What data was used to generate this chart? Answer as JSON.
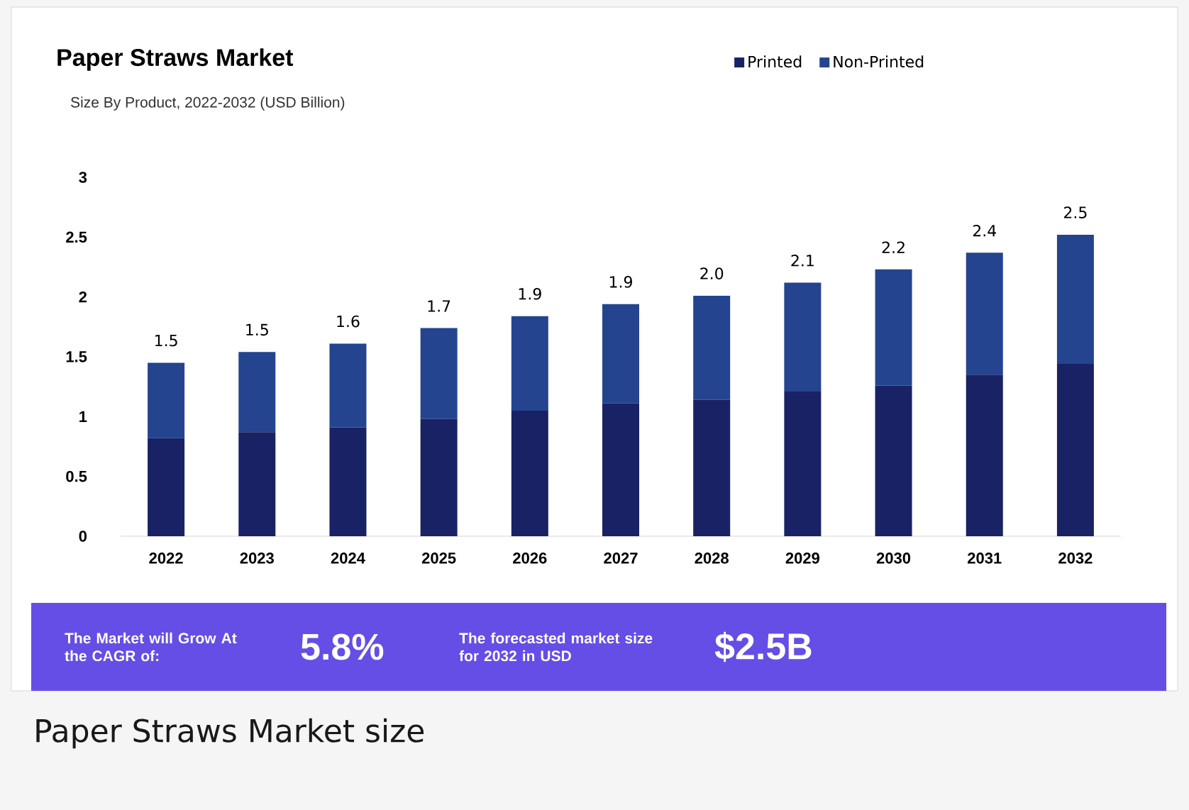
{
  "chart_data": {
    "type": "bar",
    "stacked": true,
    "title": "Paper Straws Market",
    "subtitle": "Size By Product, 2022-2032 (USD Billion)",
    "categories": [
      "2022",
      "2023",
      "2024",
      "2025",
      "2026",
      "2027",
      "2028",
      "2029",
      "2030",
      "2031",
      "2032"
    ],
    "series": [
      {
        "name": "Printed",
        "color": "#182264",
        "values": [
          0.82,
          0.87,
          0.91,
          0.98,
          1.05,
          1.11,
          1.14,
          1.21,
          1.26,
          1.35,
          1.44
        ]
      },
      {
        "name": "Non-Printed",
        "color": "#24448f",
        "values": [
          0.63,
          0.67,
          0.7,
          0.76,
          0.79,
          0.83,
          0.87,
          0.91,
          0.97,
          1.02,
          1.08
        ]
      }
    ],
    "totals": [
      "1.5",
      "1.5",
      "1.6",
      "1.7",
      "1.9",
      "1.9",
      "2.0",
      "2.1",
      "2.2",
      "2.4",
      "2.5"
    ],
    "ylim": [
      0,
      3
    ],
    "yticks": [
      0,
      0.5,
      1,
      1.5,
      2,
      2.5,
      3
    ],
    "legend": "top right",
    "annotations": [
      "The Market will Grow At the CAGR of:",
      "5.8%",
      "The forecasted market size for 2032 in USD",
      "$2.5B",
      "Paper Straws Market size"
    ]
  }
}
